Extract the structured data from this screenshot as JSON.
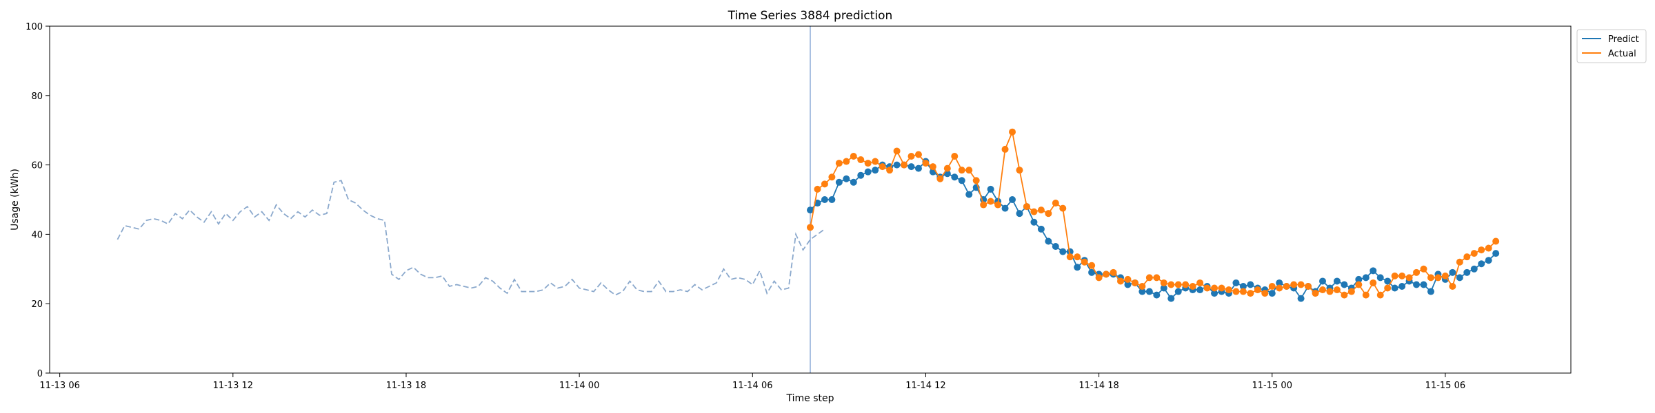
{
  "chart_data": {
    "type": "line",
    "title": "Time Series 3884 prediction",
    "xlabel": "Time step",
    "ylabel": "Usage (kWh)",
    "ylim": [
      0,
      100
    ],
    "yticks": [
      0,
      20,
      40,
      60,
      80,
      100
    ],
    "xlim_hours": [
      -0.35,
      52.35
    ],
    "xticks": [
      {
        "hour": 0,
        "label": "11-13 06"
      },
      {
        "hour": 6,
        "label": "11-13 12"
      },
      {
        "hour": 12,
        "label": "11-13 18"
      },
      {
        "hour": 18,
        "label": "11-14 00"
      },
      {
        "hour": 24,
        "label": "11-14 06"
      },
      {
        "hour": 30,
        "label": "11-14 12"
      },
      {
        "hour": 36,
        "label": "11-14 18"
      },
      {
        "hour": 42,
        "label": "11-15 00"
      },
      {
        "hour": 48,
        "label": "11-15 06"
      }
    ],
    "x_origin": "11-13 06:00",
    "step_hours": 0.25,
    "history": {
      "start_hour": 2,
      "values": [
        38.5,
        42.5,
        42,
        41.5,
        44,
        44.5,
        44,
        43,
        46,
        44.5,
        47,
        45,
        43.5,
        46.5,
        43,
        46,
        44,
        46.5,
        48,
        45,
        46.5,
        44,
        48.5,
        46,
        44.5,
        46.5,
        45,
        47,
        45.5,
        46,
        55,
        55.5,
        50,
        49,
        47,
        45.5,
        44.5,
        44,
        28.5,
        27,
        29.5,
        30.5,
        28.5,
        27.5,
        27.5,
        28,
        25,
        25.5,
        25,
        24.5,
        25,
        27.5,
        26.5,
        24.5,
        23,
        27,
        23.5,
        23.5,
        23.5,
        24,
        26,
        24.5,
        25,
        27,
        24.5,
        24,
        23.5,
        26,
        24,
        22.5,
        23.5,
        26.5,
        24,
        23.5,
        23.5,
        26.5,
        23.5,
        23.5,
        24,
        23.5,
        25.5,
        24,
        25,
        26,
        30,
        27,
        27.5,
        27,
        25.5,
        29.5,
        23,
        26.5,
        24,
        24.5,
        40,
        35.5,
        38.5,
        40,
        41.5
      ]
    },
    "forecast_start_hour": 26,
    "series": [
      {
        "name": "Predict",
        "color": "#1f77b4",
        "start_hour": 26,
        "values": [
          47,
          49,
          50,
          50,
          55,
          56,
          55,
          57,
          58,
          58.5,
          60,
          59.5,
          60,
          60,
          59.5,
          59,
          61,
          58,
          56.5,
          57.5,
          56.5,
          55.5,
          51.5,
          53.5,
          50,
          53,
          49.5,
          47.5,
          50,
          46,
          48,
          43.5,
          41.5,
          38,
          36.5,
          35,
          35,
          30.5,
          32.5,
          29,
          28.5,
          28.5,
          28.5,
          27.5,
          25.5,
          26,
          23.5,
          23.5,
          22.5,
          24.5,
          21.5,
          23.5,
          24.5,
          24,
          24,
          25,
          23,
          23.5,
          23,
          26,
          25,
          25.5,
          24.5,
          24,
          23,
          26,
          25,
          24.5,
          21.5,
          25,
          23.5,
          26.5,
          24.5,
          26.5,
          25.5,
          24.5,
          27,
          27.5,
          29.5,
          27.5,
          26.5,
          24.5,
          25,
          26.5,
          25.5,
          25.5,
          23.5,
          28.5,
          27,
          29,
          27.5,
          29,
          30,
          31.5,
          32.5,
          34.5
        ]
      },
      {
        "name": "Actual",
        "color": "#ff7f0e",
        "start_hour": 26,
        "values": [
          42,
          53,
          54.5,
          56.5,
          60.5,
          61,
          62.5,
          61.5,
          60.5,
          61,
          59.5,
          58.5,
          64,
          60,
          62.5,
          63,
          60.5,
          59.5,
          56,
          59,
          62.5,
          58.5,
          58.5,
          55.5,
          48.5,
          49.5,
          48.5,
          64.5,
          69.5,
          58.5,
          48,
          46.5,
          47,
          46,
          49,
          47.5,
          33.5,
          33.5,
          32,
          31,
          27.5,
          28.5,
          29,
          26.5,
          27,
          26,
          25,
          27.5,
          27.5,
          26,
          25.5,
          25.5,
          25.5,
          25,
          26,
          24.5,
          24.5,
          24.5,
          24,
          23.5,
          23.5,
          23,
          24,
          23,
          25,
          24.5,
          25,
          25.5,
          25.5,
          25,
          23,
          24,
          23.5,
          24,
          22.5,
          23.5,
          25.5,
          22.5,
          26,
          22.5,
          24.5,
          28,
          28,
          27.5,
          29,
          30,
          27.5,
          27.5,
          28,
          25,
          32,
          33.5,
          34.5,
          35.5,
          36,
          38
        ]
      }
    ],
    "legend": {
      "position": "outside-top-right",
      "entries": [
        "Predict",
        "Actual"
      ]
    }
  },
  "colors": {
    "history": "#8aa8cc",
    "divider": "#7b9ed1",
    "axis": "#000000"
  }
}
